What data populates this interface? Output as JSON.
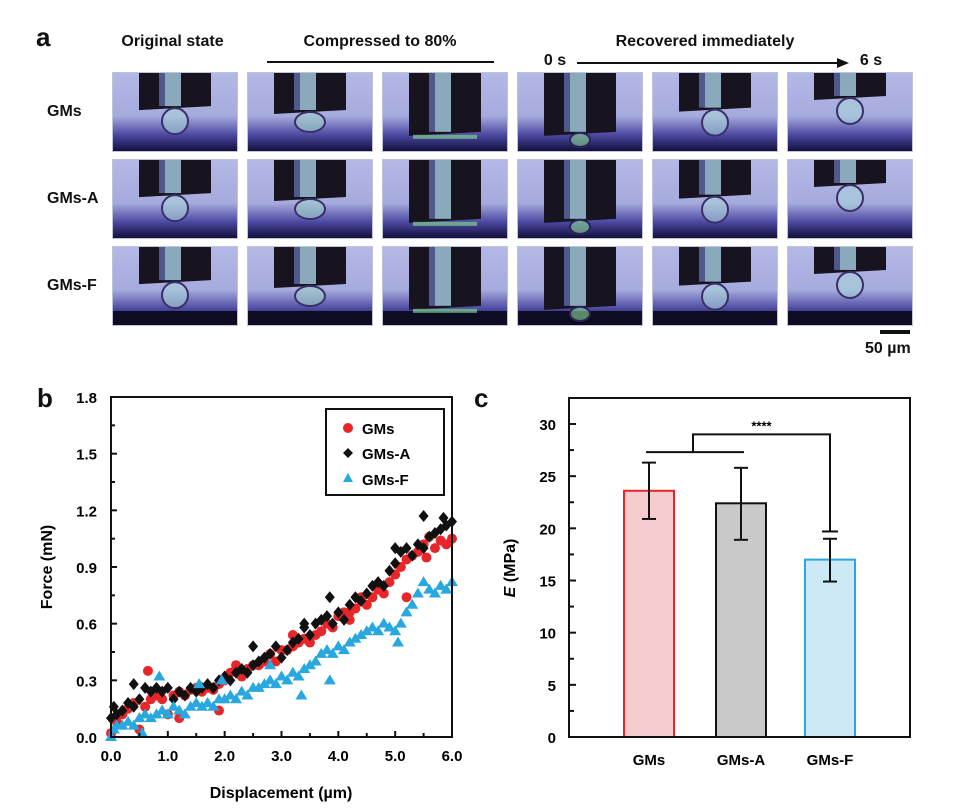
{
  "figure": {
    "panel_a": {
      "letter": "a",
      "headers": {
        "original": "Original state",
        "compressed": "Compressed to 80%",
        "recovered": "Recovered immediately",
        "time_start": "0 s",
        "time_end": "6 s"
      },
      "rows": [
        {
          "label": "GMs"
        },
        {
          "label": "GMs-A"
        },
        {
          "label": "GMs-F"
        }
      ],
      "columns": [
        "original",
        "compressed-1",
        "compressed-2",
        "recovered-0s",
        "recovered-mid",
        "recovered-6s"
      ],
      "scale_bar": "50 µm",
      "colors": {
        "background": "#a9aee0",
        "tip": "#15121f",
        "substrate": "#1e1a5a"
      }
    },
    "panel_b": {
      "letter": "b"
    },
    "panel_c": {
      "letter": "c"
    }
  },
  "chart_data": [
    {
      "type": "scatter",
      "panel": "b",
      "title": "",
      "xlabel": "Displacement (µm)",
      "ylabel": "Force (mN)",
      "xlim": [
        0,
        6
      ],
      "ylim": [
        0,
        1.8
      ],
      "xticks": [
        "0.0",
        "1.0",
        "2.0",
        "3.0",
        "4.0",
        "5.0",
        "6.0"
      ],
      "yticks": [
        "0.0",
        "0.3",
        "0.6",
        "0.9",
        "1.2",
        "1.5",
        "1.8"
      ],
      "grid": false,
      "legend": {
        "position": "top-right",
        "entries": [
          "GMs",
          "GMs-A",
          "GMs-F"
        ]
      },
      "series": [
        {
          "name": "GMs",
          "marker": "circle",
          "color": "#e8262a",
          "x": [
            0.0,
            0.1,
            0.2,
            0.3,
            0.4,
            0.5,
            0.6,
            0.7,
            0.8,
            0.9,
            1.0,
            1.1,
            1.2,
            1.3,
            1.4,
            1.5,
            1.6,
            1.7,
            1.8,
            1.9,
            2.0,
            2.1,
            2.2,
            2.3,
            2.4,
            2.5,
            2.6,
            2.7,
            2.8,
            2.9,
            3.0,
            3.1,
            3.2,
            3.3,
            3.4,
            3.5,
            3.6,
            3.7,
            3.8,
            3.9,
            4.0,
            4.1,
            4.2,
            4.3,
            4.4,
            4.5,
            4.6,
            4.7,
            4.8,
            4.9,
            5.0,
            5.1,
            5.2,
            5.3,
            5.4,
            5.5,
            5.6,
            5.7,
            5.8,
            5.9,
            6.0,
            0.65,
            1.2,
            1.9,
            2.2,
            3.2,
            4.2,
            4.4,
            5.2,
            5.55
          ],
          "y": [
            0.02,
            0.08,
            0.12,
            0.15,
            0.18,
            0.04,
            0.16,
            0.2,
            0.22,
            0.2,
            0.12,
            0.22,
            0.24,
            0.22,
            0.25,
            0.26,
            0.24,
            0.26,
            0.25,
            0.28,
            0.3,
            0.34,
            0.36,
            0.32,
            0.36,
            0.38,
            0.38,
            0.4,
            0.44,
            0.4,
            0.46,
            0.46,
            0.48,
            0.5,
            0.52,
            0.5,
            0.54,
            0.56,
            0.6,
            0.58,
            0.64,
            0.66,
            0.62,
            0.68,
            0.72,
            0.7,
            0.74,
            0.78,
            0.76,
            0.82,
            0.86,
            0.9,
            0.94,
            0.96,
            0.98,
            1.02,
            1.06,
            1.0,
            1.04,
            1.02,
            1.05,
            0.35,
            0.1,
            0.14,
            0.38,
            0.54,
            0.66,
            0.74,
            0.74,
            0.95
          ]
        },
        {
          "name": "GMs-A",
          "marker": "diamond",
          "color": "#111111",
          "x": [
            0.0,
            0.05,
            0.1,
            0.2,
            0.3,
            0.4,
            0.5,
            0.6,
            0.7,
            0.8,
            0.9,
            1.0,
            1.1,
            1.2,
            1.3,
            1.4,
            1.5,
            1.6,
            1.7,
            1.8,
            1.9,
            2.0,
            2.1,
            2.2,
            2.3,
            2.4,
            2.5,
            2.6,
            2.7,
            2.8,
            2.9,
            3.0,
            3.1,
            3.2,
            3.3,
            3.4,
            3.5,
            3.6,
            3.7,
            3.8,
            3.9,
            4.0,
            4.1,
            4.2,
            4.3,
            4.4,
            4.5,
            4.6,
            4.7,
            4.8,
            4.9,
            5.0,
            5.1,
            5.2,
            5.3,
            5.4,
            5.5,
            5.6,
            5.7,
            5.8,
            5.9,
            6.0,
            0.4,
            2.5,
            3.85,
            3.4,
            5.0,
            5.5,
            5.85
          ],
          "y": [
            0.1,
            0.16,
            0.12,
            0.14,
            0.18,
            0.16,
            0.2,
            0.26,
            0.24,
            0.26,
            0.24,
            0.26,
            0.2,
            0.24,
            0.22,
            0.26,
            0.24,
            0.26,
            0.28,
            0.26,
            0.3,
            0.32,
            0.3,
            0.34,
            0.36,
            0.34,
            0.38,
            0.4,
            0.42,
            0.44,
            0.48,
            0.42,
            0.46,
            0.5,
            0.52,
            0.58,
            0.54,
            0.6,
            0.62,
            0.64,
            0.6,
            0.66,
            0.62,
            0.7,
            0.74,
            0.72,
            0.76,
            0.8,
            0.82,
            0.8,
            0.88,
            0.92,
            0.98,
            1.0,
            0.96,
            1.02,
            1.0,
            1.06,
            1.08,
            1.1,
            1.12,
            1.14,
            0.28,
            0.48,
            0.74,
            0.6,
            1.0,
            1.17,
            1.16
          ]
        },
        {
          "name": "GMs-F",
          "marker": "triangle",
          "color": "#29a8e0",
          "x": [
            0.0,
            0.05,
            0.1,
            0.2,
            0.3,
            0.4,
            0.5,
            0.6,
            0.7,
            0.8,
            0.9,
            1.0,
            1.1,
            1.2,
            1.3,
            1.4,
            1.5,
            1.6,
            1.7,
            1.8,
            1.9,
            2.0,
            2.1,
            2.2,
            2.3,
            2.4,
            2.5,
            2.6,
            2.7,
            2.8,
            2.9,
            3.0,
            3.1,
            3.2,
            3.3,
            3.4,
            3.5,
            3.6,
            3.7,
            3.8,
            3.9,
            4.0,
            4.1,
            4.2,
            4.3,
            4.4,
            4.5,
            4.6,
            4.7,
            4.8,
            4.9,
            5.0,
            5.1,
            5.2,
            5.3,
            5.4,
            5.5,
            5.6,
            5.7,
            5.8,
            5.9,
            6.0,
            0.55,
            0.85,
            1.55,
            1.95,
            2.8,
            3.35,
            3.85,
            5.05
          ],
          "y": [
            0.0,
            0.04,
            0.06,
            0.06,
            0.08,
            0.06,
            0.1,
            0.12,
            0.1,
            0.12,
            0.14,
            0.12,
            0.16,
            0.14,
            0.12,
            0.16,
            0.18,
            0.16,
            0.18,
            0.16,
            0.2,
            0.2,
            0.22,
            0.2,
            0.24,
            0.22,
            0.26,
            0.26,
            0.28,
            0.3,
            0.28,
            0.32,
            0.3,
            0.34,
            0.32,
            0.36,
            0.38,
            0.4,
            0.44,
            0.46,
            0.44,
            0.48,
            0.46,
            0.5,
            0.52,
            0.54,
            0.56,
            0.58,
            0.56,
            0.6,
            0.58,
            0.56,
            0.6,
            0.66,
            0.7,
            0.76,
            0.82,
            0.78,
            0.76,
            0.8,
            0.78,
            0.82,
            0.02,
            0.32,
            0.28,
            0.3,
            0.38,
            0.22,
            0.3,
            0.5
          ]
        }
      ]
    },
    {
      "type": "bar",
      "panel": "c",
      "title": "",
      "xlabel": "",
      "ylabel": "E (MPa)",
      "ylabel_italic": "E",
      "ylabel_unit": " (MPa)",
      "ylim": [
        0,
        32
      ],
      "yticks": [
        "0",
        "5",
        "10",
        "15",
        "20",
        "25",
        "30"
      ],
      "grid": false,
      "categories": [
        "GMs",
        "GMs-A",
        "GMs-F"
      ],
      "values": [
        23.6,
        22.4,
        17.0
      ],
      "errors": [
        [
          20.9,
          26.3
        ],
        [
          18.9,
          25.8
        ],
        [
          14.9,
          19.0
        ]
      ],
      "colors": {
        "fill": [
          "#f7cccf",
          "#c9c9c9",
          "#cde9f6"
        ],
        "stroke": [
          "#e8262a",
          "#111111",
          "#29a8e0"
        ]
      },
      "significance": {
        "label": "****",
        "group_a": [
          "GMs",
          "GMs-A"
        ],
        "group_b": [
          "GMs-F"
        ],
        "group_a_bar_value": 27.3,
        "bracket_top_value": 29.0,
        "group_b_end_value": 19.7
      }
    }
  ]
}
